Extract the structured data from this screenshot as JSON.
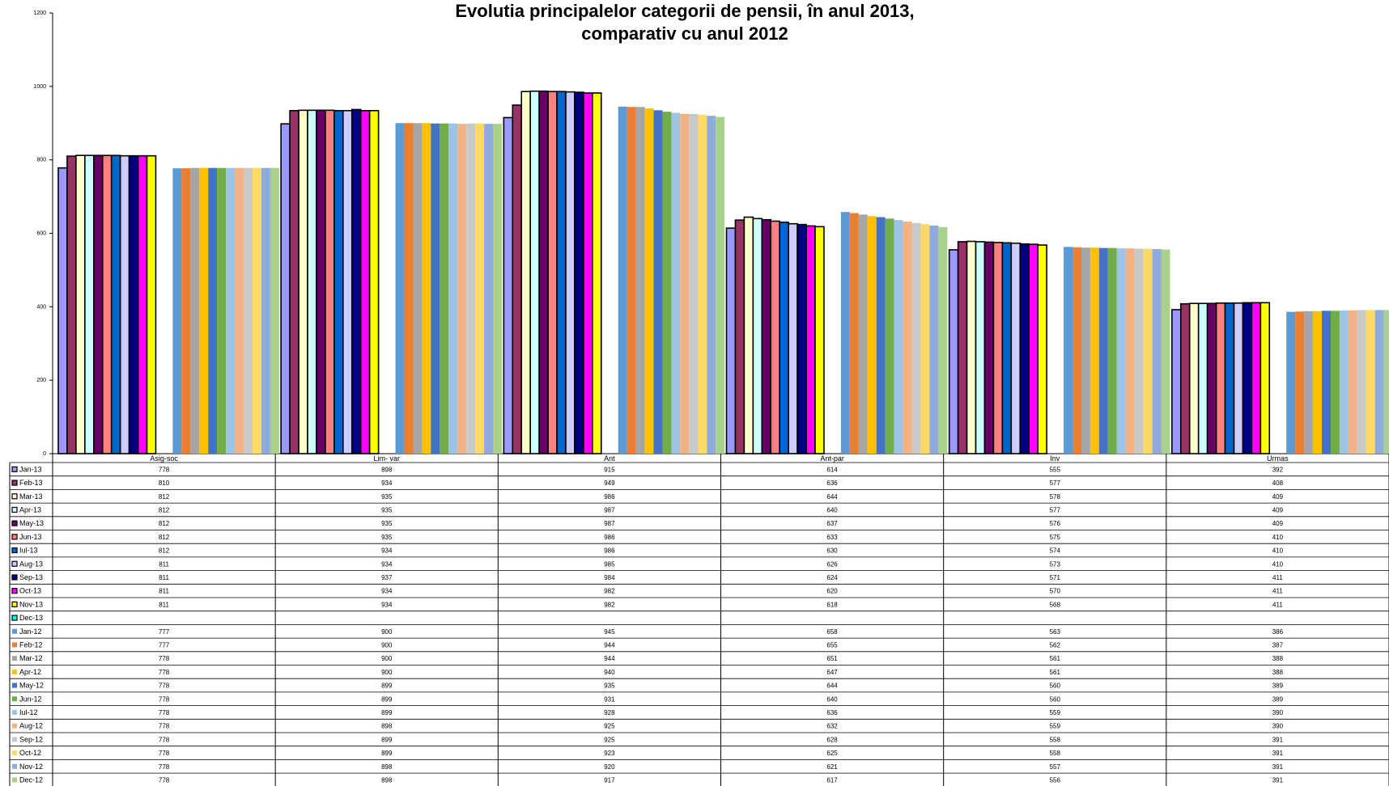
{
  "chart_data": {
    "type": "bar",
    "title_line1": "Evolutia principalelor categorii de pensii,  în anul 2013,",
    "title_line2": "comparativ cu  anul  2012",
    "categories": [
      "Asig-soc",
      "Lim- var",
      "Ant",
      "Ant-par",
      "Inv",
      "Urmas"
    ],
    "yticks": [
      "0",
      "200",
      "400",
      "600",
      "800",
      "1000",
      "1200"
    ],
    "ylim": [
      0,
      1200
    ],
    "legend": "data-table",
    "series": [
      {
        "name": "Jan-13",
        "color": "#9999ff",
        "values": [
          778,
          898,
          915,
          614,
          555,
          392
        ]
      },
      {
        "name": "Feb-13",
        "color": "#993366",
        "values": [
          810,
          934,
          949,
          636,
          577,
          408
        ]
      },
      {
        "name": "Mar-13",
        "color": "#ffffcc",
        "values": [
          812,
          935,
          986,
          644,
          578,
          409
        ]
      },
      {
        "name": "Apr-13",
        "color": "#ccffff",
        "values": [
          812,
          935,
          987,
          640,
          577,
          409
        ]
      },
      {
        "name": "May-13",
        "color": "#660066",
        "values": [
          812,
          935,
          987,
          637,
          576,
          409
        ]
      },
      {
        "name": "Jun-13",
        "color": "#ff8080",
        "values": [
          812,
          935,
          986,
          633,
          575,
          410
        ]
      },
      {
        "name": "Iul-13",
        "color": "#0066cc",
        "values": [
          812,
          934,
          986,
          630,
          574,
          410
        ]
      },
      {
        "name": "Aug-13",
        "color": "#ccccff",
        "values": [
          811,
          934,
          985,
          626,
          573,
          410
        ]
      },
      {
        "name": "Sep-13",
        "color": "#000080",
        "values": [
          811,
          937,
          984,
          624,
          571,
          411
        ]
      },
      {
        "name": "Oct-13",
        "color": "#ff00ff",
        "values": [
          811,
          934,
          982,
          620,
          570,
          411
        ]
      },
      {
        "name": "Nov-13",
        "color": "#ffff00",
        "values": [
          811,
          934,
          982,
          618,
          568,
          411
        ]
      },
      {
        "name": "Dec-13",
        "color": "#00ffff",
        "values": [
          null,
          null,
          null,
          null,
          null,
          null
        ]
      },
      {
        "name": "Jan-12",
        "color": "#5b9bd5",
        "values": [
          777,
          900,
          945,
          658,
          563,
          386
        ]
      },
      {
        "name": "Feb-12",
        "color": "#ed7d31",
        "values": [
          777,
          900,
          944,
          655,
          562,
          387
        ]
      },
      {
        "name": "Mar-12",
        "color": "#a5a5a5",
        "values": [
          778,
          900,
          944,
          651,
          561,
          388
        ]
      },
      {
        "name": "Apr-12",
        "color": "#ffc000",
        "values": [
          778,
          900,
          940,
          647,
          561,
          388
        ]
      },
      {
        "name": "May-12",
        "color": "#4472c4",
        "values": [
          778,
          899,
          935,
          644,
          560,
          389
        ]
      },
      {
        "name": "Jun-12",
        "color": "#70ad47",
        "values": [
          778,
          899,
          931,
          640,
          560,
          389
        ]
      },
      {
        "name": "Iul-12",
        "color": "#9dc3e6",
        "values": [
          778,
          899,
          928,
          636,
          559,
          390
        ]
      },
      {
        "name": "Aug-12",
        "color": "#f4b183",
        "values": [
          778,
          898,
          925,
          632,
          559,
          390
        ]
      },
      {
        "name": "Sep-12",
        "color": "#c9c9c9",
        "values": [
          778,
          899,
          925,
          628,
          558,
          391
        ]
      },
      {
        "name": "Oct-12",
        "color": "#ffd966",
        "values": [
          778,
          899,
          923,
          625,
          558,
          391
        ]
      },
      {
        "name": "Nov-12",
        "color": "#8faadc",
        "values": [
          778,
          898,
          920,
          621,
          557,
          391
        ]
      },
      {
        "name": "Dec-12",
        "color": "#a9d18e",
        "values": [
          778,
          898,
          917,
          617,
          556,
          391
        ]
      }
    ]
  }
}
